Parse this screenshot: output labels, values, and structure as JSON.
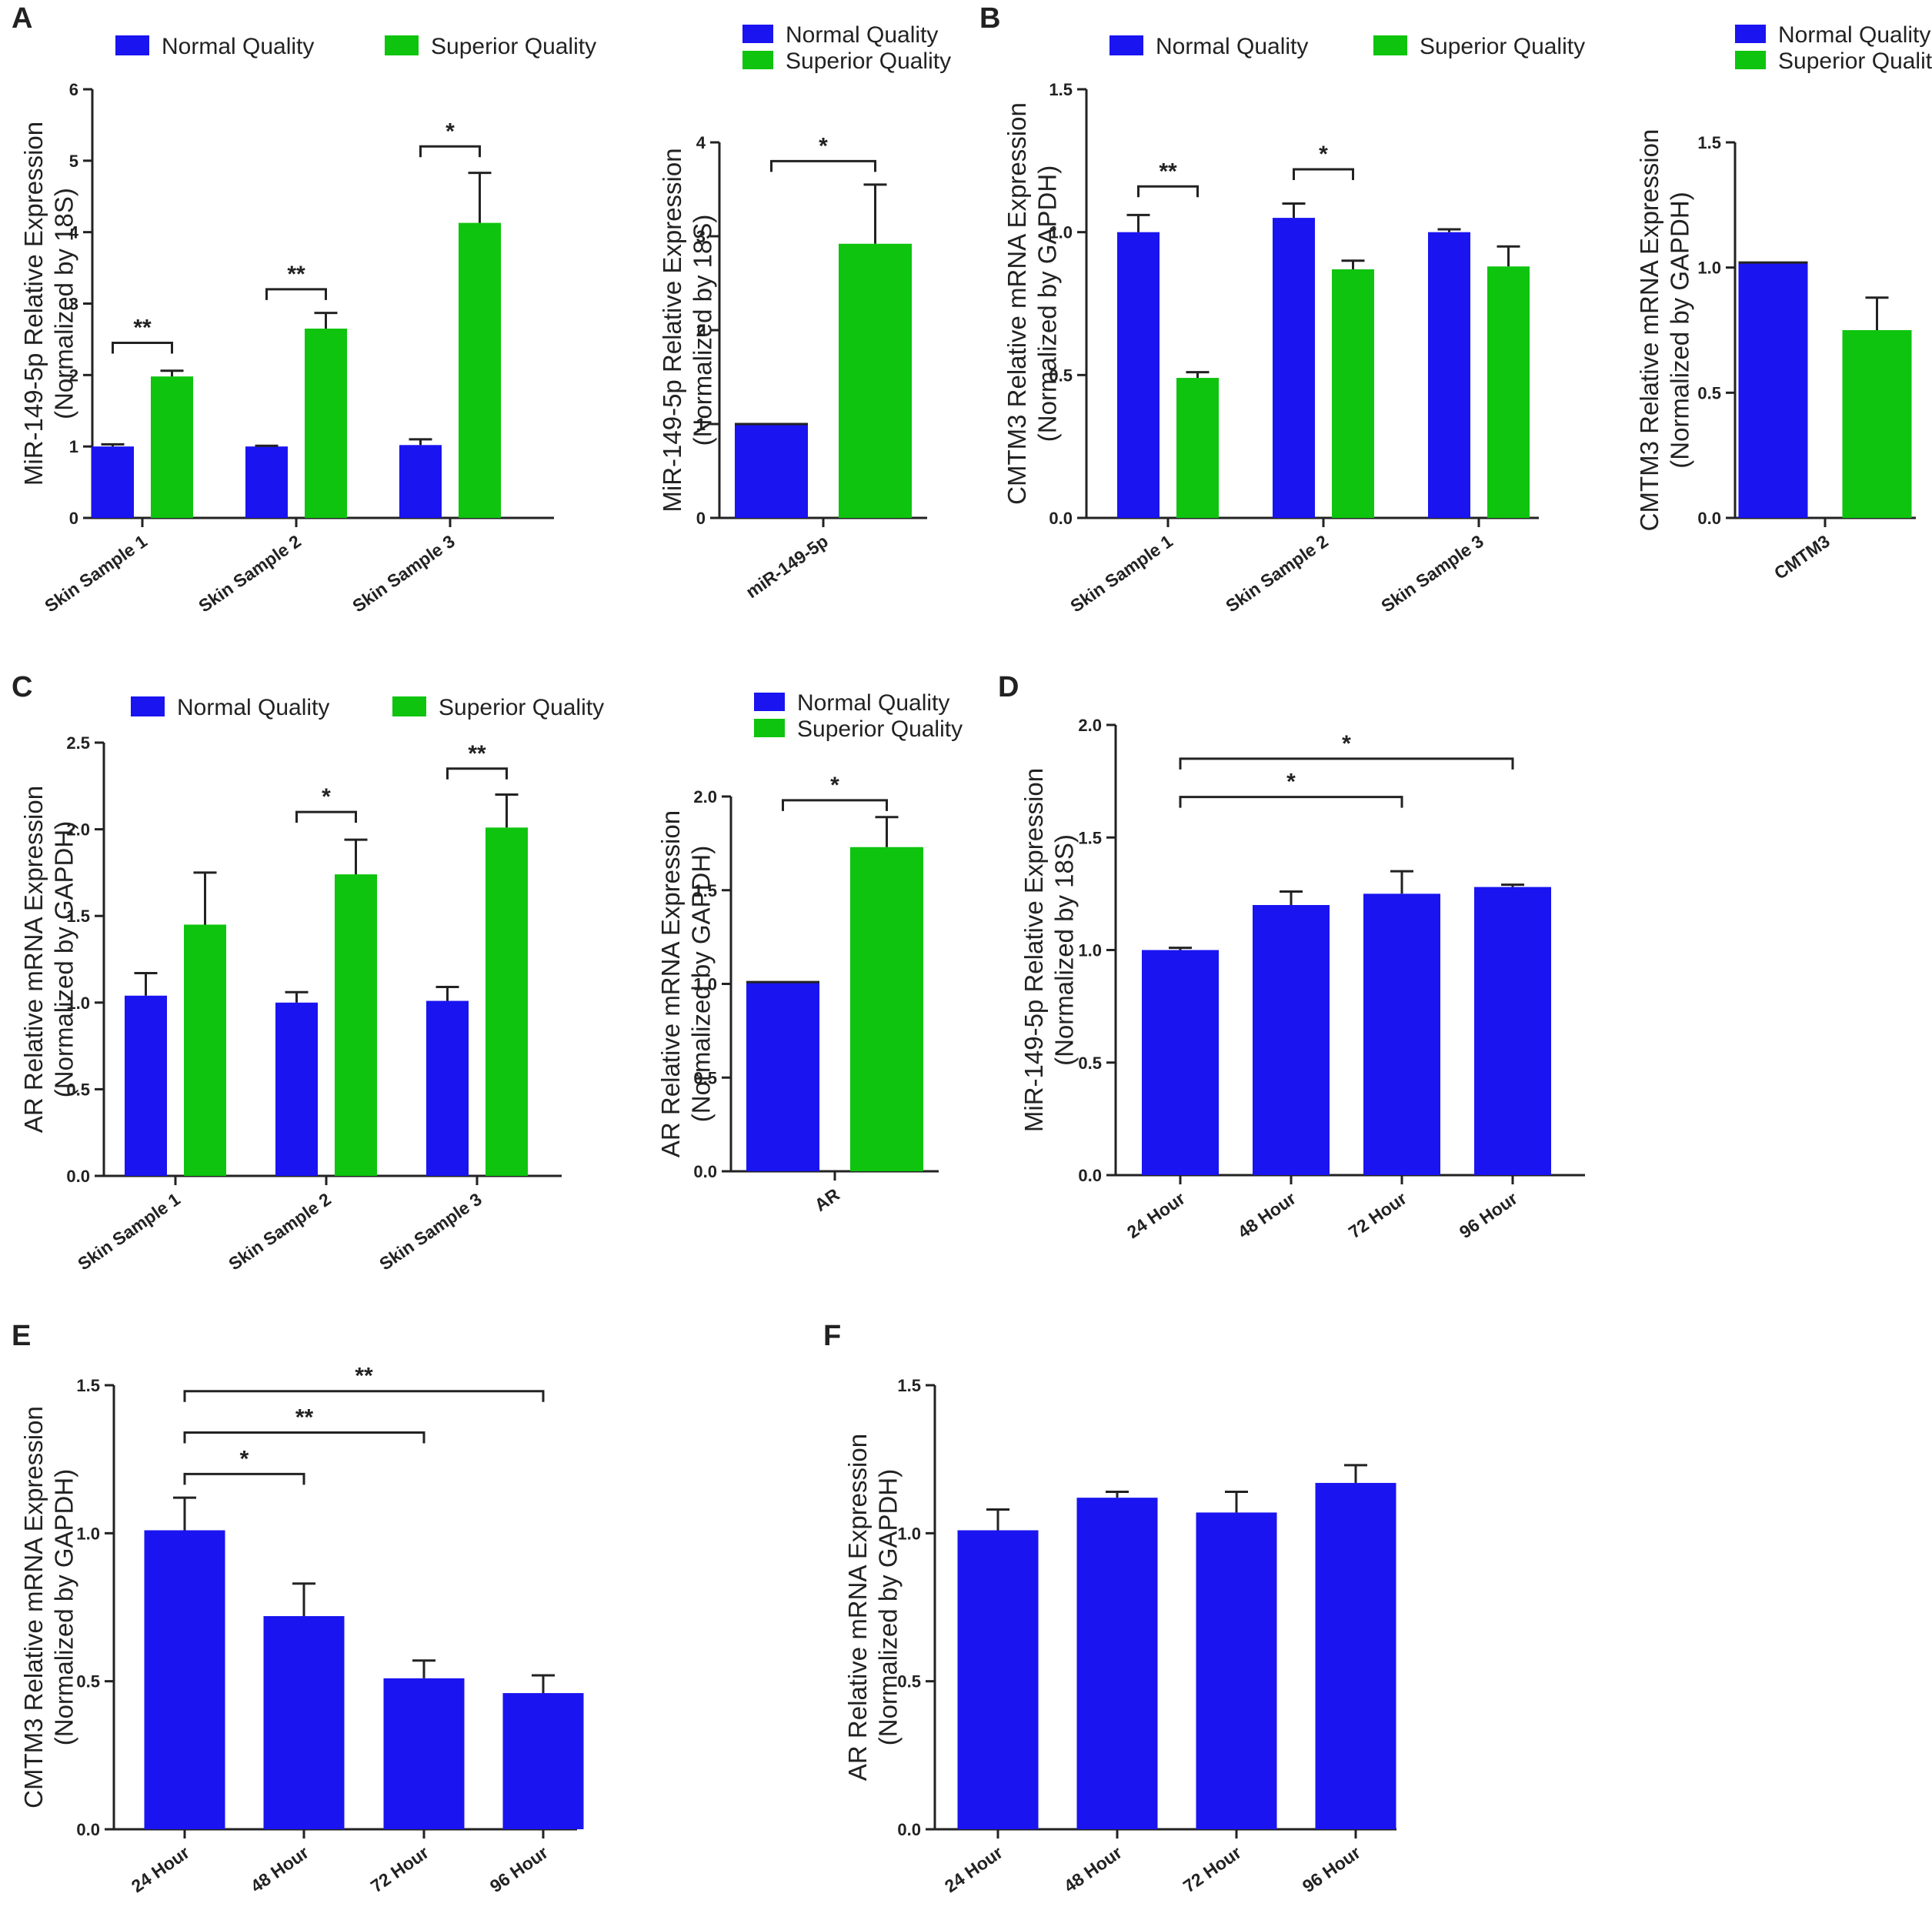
{
  "colors": {
    "normal": "#1a14f0",
    "superior": "#0ec40e",
    "single": "#1a14f0"
  },
  "chart_data": [
    {
      "id": "A_left",
      "panel_label": "A",
      "type": "bar",
      "ylabel": [
        "MiR-149-5p Relative Expression",
        "(Normalized by 18S)"
      ],
      "ylim": [
        0,
        6
      ],
      "yticks": [
        "0",
        "1",
        "2",
        "3",
        "4",
        "5",
        "6"
      ],
      "categories": [
        "Skin Sample 1",
        "Skin Sample 2",
        "Skin Sample 3"
      ],
      "legend": {
        "layout": "row",
        "entries": [
          "Normal Quality",
          "Superior Quality"
        ]
      },
      "series": [
        {
          "name": "Normal Quality",
          "color_key": "normal",
          "values": [
            1.0,
            1.0,
            1.02
          ],
          "errors": [
            0.03,
            0.01,
            0.08
          ]
        },
        {
          "name": "Superior Quality",
          "color_key": "superior",
          "values": [
            1.98,
            2.65,
            4.13
          ],
          "errors": [
            0.08,
            0.22,
            0.7
          ]
        }
      ],
      "annotations": [
        {
          "text": "**",
          "pairs": [
            [
              0,
              0
            ],
            [
              0,
              1
            ]
          ],
          "y": 2.45
        },
        {
          "text": "**",
          "pairs": [
            [
              1,
              0
            ],
            [
              1,
              1
            ]
          ],
          "y": 3.2
        },
        {
          "text": "*",
          "pairs": [
            [
              2,
              0
            ],
            [
              2,
              1
            ]
          ],
          "y": 5.2
        }
      ]
    },
    {
      "id": "A_right",
      "type": "bar",
      "ylabel": [
        "MiR-149-5p Relative Expression",
        "(Normalized by 18S)"
      ],
      "ylim": [
        0,
        4
      ],
      "yticks": [
        "0",
        "1",
        "2",
        "3",
        "4"
      ],
      "categories": [
        "miR-149-5p"
      ],
      "legend": {
        "layout": "column",
        "entries": [
          "Normal Quality",
          "Superior Quality"
        ]
      },
      "series": [
        {
          "name": "Normal Quality",
          "color_key": "normal",
          "values": [
            1.0
          ],
          "errors": [
            0.0
          ]
        },
        {
          "name": "Superior Quality",
          "color_key": "superior",
          "values": [
            2.92
          ],
          "errors": [
            0.63
          ]
        }
      ],
      "annotations": [
        {
          "text": "*",
          "pairs": [
            [
              0,
              0
            ],
            [
              0,
              1
            ]
          ],
          "y": 3.8
        }
      ]
    },
    {
      "id": "B_left",
      "panel_label": "B",
      "type": "bar",
      "ylabel": [
        "CMTM3 Relative mRNA Expression",
        "(Normalized by GAPDH)"
      ],
      "ylim": [
        0,
        1.5
      ],
      "yticks": [
        "0.0",
        "0.5",
        "1.0",
        "1.5"
      ],
      "categories": [
        "Skin Sample 1",
        "Skin Sample 2",
        "Skin Sample 3"
      ],
      "legend": {
        "layout": "row",
        "entries": [
          "Normal Quality",
          "Superior Quality"
        ]
      },
      "series": [
        {
          "name": "Normal Quality",
          "color_key": "normal",
          "values": [
            1.0,
            1.05,
            1.0
          ],
          "errors": [
            0.06,
            0.05,
            0.01
          ]
        },
        {
          "name": "Superior Quality",
          "color_key": "superior",
          "values": [
            0.49,
            0.87,
            0.88
          ],
          "errors": [
            0.02,
            0.03,
            0.07
          ]
        }
      ],
      "annotations": [
        {
          "text": "**",
          "pairs": [
            [
              0,
              0
            ],
            [
              0,
              1
            ]
          ],
          "y": 1.16
        },
        {
          "text": "*",
          "pairs": [
            [
              1,
              0
            ],
            [
              1,
              1
            ]
          ],
          "y": 1.22
        }
      ]
    },
    {
      "id": "B_right",
      "type": "bar",
      "ylabel": [
        "CMTM3 Relative mRNA Expression",
        "(Normalized by GAPDH)"
      ],
      "ylim": [
        0,
        1.5
      ],
      "yticks": [
        "0.0",
        "0.5",
        "1.0",
        "1.5"
      ],
      "categories": [
        "CMTM3"
      ],
      "legend": {
        "layout": "column",
        "entries": [
          "Normal Quality",
          "Superior Quality"
        ]
      },
      "series": [
        {
          "name": "Normal Quality",
          "color_key": "normal",
          "values": [
            1.02
          ],
          "errors": [
            0.0
          ]
        },
        {
          "name": "Superior Quality",
          "color_key": "superior",
          "values": [
            0.75
          ],
          "errors": [
            0.13
          ]
        }
      ],
      "annotations": []
    },
    {
      "id": "C_left",
      "panel_label": "C",
      "type": "bar",
      "ylabel": [
        "AR Relative mRNA Expression",
        "(Normalized by GAPDH)"
      ],
      "ylim": [
        0,
        2.5
      ],
      "yticks": [
        "0.0",
        "0.5",
        "1.0",
        "1.5",
        "2.0",
        "2.5"
      ],
      "categories": [
        "Skin Sample 1",
        "Skin Sample 2",
        "Skin Sample 3"
      ],
      "legend": {
        "layout": "row",
        "entries": [
          "Normal Quality",
          "Superior Quality"
        ]
      },
      "series": [
        {
          "name": "Normal Quality",
          "color_key": "normal",
          "values": [
            1.04,
            1.0,
            1.01
          ],
          "errors": [
            0.13,
            0.06,
            0.08
          ]
        },
        {
          "name": "Superior Quality",
          "color_key": "superior",
          "values": [
            1.45,
            1.74,
            2.01
          ],
          "errors": [
            0.3,
            0.2,
            0.19
          ]
        }
      ],
      "annotations": [
        {
          "text": "*",
          "pairs": [
            [
              1,
              0
            ],
            [
              1,
              1
            ]
          ],
          "y": 2.1
        },
        {
          "text": "**",
          "pairs": [
            [
              2,
              0
            ],
            [
              2,
              1
            ]
          ],
          "y": 2.35
        }
      ]
    },
    {
      "id": "C_right",
      "type": "bar",
      "ylabel": [
        "AR Relative mRNA Expression",
        "(Normalized by GAPDH)"
      ],
      "ylim": [
        0,
        2.0
      ],
      "yticks": [
        "0.0",
        "0.5",
        "1.0",
        "1.5",
        "2.0"
      ],
      "categories": [
        "AR"
      ],
      "legend": {
        "layout": "column",
        "entries": [
          "Normal Quality",
          "Superior Quality"
        ]
      },
      "series": [
        {
          "name": "Normal Quality",
          "color_key": "normal",
          "values": [
            1.01
          ],
          "errors": [
            0.0
          ]
        },
        {
          "name": "Superior Quality",
          "color_key": "superior",
          "values": [
            1.73
          ],
          "errors": [
            0.16
          ]
        }
      ],
      "annotations": [
        {
          "text": "*",
          "pairs": [
            [
              0,
              0
            ],
            [
              0,
              1
            ]
          ],
          "y": 1.98
        }
      ]
    },
    {
      "id": "D",
      "panel_label": "D",
      "type": "bar",
      "ylabel": [
        "MiR-149-5p  Relative  Expression",
        "(Normalized by 18S)"
      ],
      "ylim": [
        0,
        2.0
      ],
      "yticks": [
        "0.0",
        "0.5",
        "1.0",
        "1.5",
        "2.0"
      ],
      "categories": [
        "24 Hour",
        "48 Hour",
        "72 Hour",
        "96 Hour"
      ],
      "series": [
        {
          "name": "",
          "color_key": "single",
          "values": [
            1.0,
            1.2,
            1.25,
            1.28
          ],
          "errors": [
            0.01,
            0.06,
            0.1,
            0.01
          ]
        }
      ],
      "annotations": [
        {
          "text": "*",
          "from": 0,
          "to": 2,
          "y": 1.68
        },
        {
          "text": "*",
          "from": 0,
          "to": 3,
          "y": 1.85
        }
      ]
    },
    {
      "id": "E",
      "panel_label": "E",
      "type": "bar",
      "ylabel": [
        "CMTM3  Relative mRNA Expression",
        "(Normalized by GAPDH)"
      ],
      "ylim": [
        0,
        1.5
      ],
      "yticks": [
        "0.0",
        "0.5",
        "1.0",
        "1.5"
      ],
      "categories": [
        "24 Hour",
        "48 Hour",
        "72 Hour",
        "96 Hour"
      ],
      "series": [
        {
          "name": "",
          "color_key": "single",
          "values": [
            1.01,
            0.72,
            0.51,
            0.46
          ],
          "errors": [
            0.11,
            0.11,
            0.06,
            0.06
          ]
        }
      ],
      "annotations": [
        {
          "text": "*",
          "from": 0,
          "to": 1,
          "y": 1.2
        },
        {
          "text": "**",
          "from": 0,
          "to": 2,
          "y": 1.34
        },
        {
          "text": "**",
          "from": 0,
          "to": 3,
          "y": 1.48
        }
      ]
    },
    {
      "id": "F",
      "panel_label": "F",
      "type": "bar",
      "ylabel": [
        "AR  Relative mRNA Expression",
        "(Normalized by GAPDH)"
      ],
      "ylim": [
        0,
        1.5
      ],
      "yticks": [
        "0.0",
        "0.5",
        "1.0",
        "1.5"
      ],
      "categories": [
        "24 Hour",
        "48 Hour",
        "72 Hour",
        "96 Hour"
      ],
      "series": [
        {
          "name": "",
          "color_key": "single",
          "values": [
            1.01,
            1.12,
            1.07,
            1.17
          ],
          "errors": [
            0.07,
            0.02,
            0.07,
            0.06
          ]
        }
      ],
      "annotations": []
    }
  ]
}
